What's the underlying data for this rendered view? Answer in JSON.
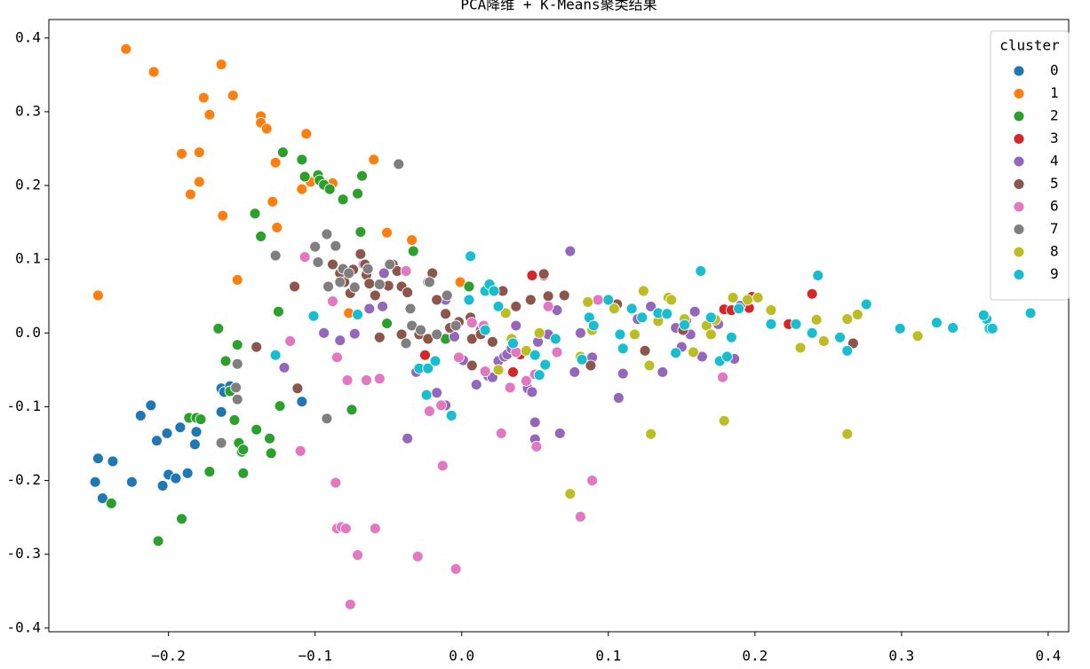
{
  "chart_data": {
    "type": "scatter",
    "title": "PCA降维 + K-Means聚类结果",
    "legend_title": "cluster",
    "legend": "upper right",
    "grid": false,
    "xlim": [
      -0.2816,
      0.414
    ],
    "ylim": [
      -0.405,
      0.425
    ],
    "xticks": [
      {
        "value": -0.2,
        "label": "−0.2"
      },
      {
        "value": -0.1,
        "label": "−0.1"
      },
      {
        "value": 0,
        "label": "0.0"
      },
      0.1,
      0.2,
      0.3,
      0.4
    ],
    "yticks": [
      -0.4,
      -0.3,
      -0.2,
      -0.1,
      {
        "value": 0,
        "label": "0.0"
      },
      0.1,
      0.2,
      0.3,
      0.4
    ],
    "series": [
      {
        "name": "0",
        "color": "#1f77b4",
        "x": [
          -0.25,
          -0.248,
          -0.245,
          -0.238,
          -0.225,
          -0.219,
          -0.212,
          -0.208,
          -0.204,
          -0.201,
          -0.2,
          -0.195,
          -0.192,
          -0.187,
          -0.182,
          -0.181,
          -0.164,
          -0.164,
          -0.162,
          -0.158,
          -0.109
        ],
        "y": [
          -0.202,
          -0.17,
          -0.224,
          -0.174,
          -0.202,
          -0.112,
          -0.098,
          -0.146,
          -0.207,
          -0.136,
          -0.192,
          -0.197,
          -0.128,
          -0.19,
          -0.151,
          -0.134,
          -0.107,
          -0.075,
          -0.08,
          -0.072,
          -0.093
        ]
      },
      {
        "name": "1",
        "color": "#ff7f0e",
        "x": [
          -0.248,
          -0.229,
          -0.21,
          -0.191,
          -0.185,
          -0.179,
          -0.179,
          -0.176,
          -0.172,
          -0.164,
          -0.163,
          -0.156,
          -0.153,
          -0.137,
          -0.137,
          -0.133,
          -0.129,
          -0.127,
          -0.126,
          -0.106,
          -0.109,
          -0.103,
          -0.088,
          -0.077,
          -0.06,
          -0.051,
          -0.034,
          -0.001
        ],
        "y": [
          0.051,
          0.385,
          0.354,
          0.243,
          0.188,
          0.245,
          0.205,
          0.319,
          0.296,
          0.364,
          0.159,
          0.322,
          0.072,
          0.294,
          0.285,
          0.277,
          0.178,
          0.231,
          0.143,
          0.27,
          0.195,
          0.205,
          0.203,
          0.027,
          0.235,
          0.136,
          0.126,
          0.069
        ]
      },
      {
        "name": "2",
        "color": "#2ca02c",
        "x": [
          -0.239,
          -0.207,
          -0.191,
          -0.186,
          -0.181,
          -0.178,
          -0.172,
          -0.166,
          -0.161,
          -0.158,
          -0.155,
          -0.153,
          -0.152,
          -0.15,
          -0.149,
          -0.149,
          -0.141,
          -0.14,
          -0.137,
          -0.131,
          -0.13,
          -0.125,
          -0.124,
          -0.122,
          -0.109,
          -0.107,
          -0.098,
          -0.097,
          -0.094,
          -0.09,
          -0.081,
          -0.075,
          -0.071,
          -0.069,
          -0.068,
          -0.051,
          -0.033,
          -0.011,
          0.005
        ],
        "y": [
          -0.231,
          -0.282,
          -0.252,
          -0.115,
          -0.115,
          -0.117,
          -0.188,
          0.006,
          -0.038,
          -0.079,
          -0.118,
          -0.016,
          -0.149,
          -0.161,
          -0.158,
          -0.19,
          0.162,
          -0.131,
          0.131,
          -0.143,
          -0.163,
          0.029,
          -0.099,
          0.245,
          0.235,
          0.212,
          0.214,
          0.207,
          0.201,
          0.195,
          0.181,
          -0.104,
          0.189,
          0.137,
          0.213,
          0.013,
          0.111,
          -0.008,
          0.063
        ]
      },
      {
        "name": "3",
        "color": "#d62728",
        "x": [
          -0.025,
          0.035,
          0.04,
          0.048,
          0.056,
          0.153,
          0.179,
          0.184,
          0.198,
          0.223,
          0.239,
          0.196
        ],
        "y": [
          -0.03,
          -0.053,
          -0.029,
          0.078,
          0.078,
          0.017,
          0.032,
          0.031,
          0.049,
          0.012,
          0.053,
          0.034
        ]
      },
      {
        "name": "4",
        "color": "#9467bd",
        "x": [
          -0.121,
          -0.094,
          -0.083,
          -0.073,
          -0.067,
          -0.063,
          -0.054,
          -0.037,
          -0.031,
          -0.017,
          -0.011,
          -0.005,
          0.001,
          0.01,
          0.018,
          0.021,
          0.025,
          0.029,
          0.031,
          0.034,
          0.037,
          0.045,
          0.048,
          0.05,
          0.05,
          0.052,
          0.059,
          0.065,
          0.067,
          0.074,
          0.077,
          0.081,
          0.089,
          0.107,
          0.11,
          0.12,
          0.129,
          0.137,
          0.146,
          0.15,
          0.156,
          0.159,
          0.164,
          0.175,
          0.186,
          0.19,
          -0.023,
          -0.011,
          -0.053,
          0.013
        ],
        "y": [
          -0.047,
          0.0,
          -0.01,
          -0.001,
          0.093,
          0.033,
          0.036,
          -0.143,
          -0.053,
          -0.081,
          -0.098,
          -0.005,
          -0.037,
          -0.07,
          -0.058,
          -0.06,
          -0.038,
          -0.032,
          -0.029,
          -0.021,
          0.01,
          -0.075,
          -0.08,
          -0.121,
          -0.144,
          -0.012,
          -0.002,
          0.031,
          -0.136,
          0.111,
          -0.053,
          0.0,
          -0.033,
          -0.088,
          -0.055,
          0.019,
          0.036,
          -0.053,
          0.007,
          -0.019,
          -0.002,
          0.029,
          -0.032,
          0.012,
          -0.035,
          0.037,
          0.069,
          0.045,
          0.081,
          0.004
        ]
      },
      {
        "name": "5",
        "color": "#8c564b",
        "x": [
          -0.14,
          -0.112,
          -0.114,
          -0.088,
          -0.083,
          -0.08,
          -0.076,
          -0.074,
          -0.069,
          -0.066,
          -0.065,
          -0.063,
          -0.059,
          -0.056,
          -0.05,
          -0.047,
          -0.044,
          -0.041,
          -0.037,
          -0.029,
          -0.02,
          -0.017,
          -0.011,
          -0.008,
          -0.002,
          0.006,
          0.007,
          0.013,
          0.021,
          0.028,
          0.037,
          0.047,
          0.056,
          0.059,
          0.07,
          0.088,
          0.106,
          0.125,
          0.151,
          0.267,
          -0.023,
          -0.041,
          0.007
        ],
        "y": [
          -0.019,
          -0.075,
          0.063,
          0.093,
          0.081,
          0.069,
          0.054,
          0.086,
          0.107,
          0.093,
          0.079,
          0.067,
          0.051,
          -0.006,
          0.064,
          0.093,
          0.084,
          0.063,
          0.055,
          -0.002,
          0.081,
          0.045,
          0.026,
          0.007,
          0.015,
          0.021,
          -0.008,
          -0.002,
          -0.012,
          0.057,
          0.036,
          0.045,
          0.08,
          0.05,
          0.051,
          -0.044,
          0.039,
          -0.024,
          0.004,
          -0.014,
          -0.008,
          -0.002,
          -0.044
        ]
      },
      {
        "name": "6",
        "color": "#e377c2",
        "x": [
          -0.117,
          -0.11,
          -0.107,
          -0.088,
          -0.086,
          -0.085,
          -0.085,
          -0.082,
          -0.079,
          -0.078,
          -0.071,
          -0.065,
          -0.059,
          -0.056,
          -0.076,
          -0.03,
          -0.022,
          -0.013,
          -0.004,
          -0.002,
          0.007,
          0.015,
          0.016,
          0.027,
          0.033,
          0.044,
          0.05,
          0.051,
          0.059,
          0.065,
          0.081,
          0.089,
          0.093,
          0.104,
          0.178,
          -0.038,
          -0.014,
          0.037
        ],
        "y": [
          -0.011,
          -0.16,
          0.103,
          0.043,
          -0.203,
          -0.265,
          -0.033,
          -0.263,
          -0.265,
          -0.064,
          -0.301,
          -0.064,
          -0.265,
          -0.062,
          -0.368,
          -0.303,
          -0.106,
          -0.18,
          -0.32,
          -0.033,
          0.014,
          0.01,
          -0.052,
          -0.136,
          -0.074,
          -0.065,
          -0.056,
          -0.154,
          0.036,
          -0.026,
          -0.249,
          -0.2,
          0.045,
          0.033,
          -0.06,
          0.084,
          -0.098,
          -0.026
        ]
      },
      {
        "name": "7",
        "color": "#7f7f7f",
        "x": [
          -0.164,
          -0.153,
          -0.153,
          -0.154,
          -0.127,
          -0.1,
          -0.098,
          -0.092,
          -0.092,
          -0.091,
          -0.086,
          -0.083,
          -0.081,
          -0.077,
          -0.073,
          -0.064,
          -0.056,
          -0.049,
          -0.043,
          -0.038,
          -0.034,
          -0.028,
          -0.022,
          -0.017,
          -0.01,
          -0.004,
          -0.035
        ],
        "y": [
          -0.149,
          -0.09,
          -0.042,
          -0.074,
          0.105,
          0.117,
          0.096,
          -0.116,
          0.134,
          0.063,
          0.118,
          0.069,
          0.087,
          0.081,
          0.062,
          0.087,
          0.066,
          0.093,
          0.229,
          -0.014,
          0.01,
          0.004,
          0.069,
          -0.002,
          0.051,
          0.01,
          0.033
        ]
      },
      {
        "name": "8",
        "color": "#bcbd22",
        "x": [
          0.025,
          0.03,
          0.034,
          0.044,
          0.053,
          0.074,
          0.081,
          0.086,
          0.089,
          0.104,
          0.118,
          0.124,
          0.128,
          0.129,
          0.134,
          0.141,
          0.152,
          0.158,
          0.167,
          0.17,
          0.173,
          0.179,
          0.185,
          0.195,
          0.202,
          0.211,
          0.231,
          0.242,
          0.247,
          0.263,
          0.263,
          0.27,
          0.311,
          0.143
        ],
        "y": [
          -0.05,
          0.027,
          -0.008,
          -0.024,
          0.0,
          -0.218,
          -0.032,
          0.042,
          0.004,
          0.033,
          -0.002,
          0.057,
          -0.044,
          -0.137,
          0.016,
          0.048,
          0.019,
          -0.026,
          0.01,
          -0.002,
          0.018,
          -0.119,
          0.048,
          0.045,
          0.048,
          0.031,
          -0.02,
          0.018,
          -0.011,
          -0.137,
          0.019,
          0.025,
          -0.004,
          0.045
        ]
      },
      {
        "name": "9",
        "color": "#17becf",
        "x": [
          -0.127,
          -0.101,
          -0.071,
          -0.029,
          -0.024,
          -0.023,
          -0.018,
          -0.007,
          0.006,
          0.016,
          0.019,
          0.022,
          0.025,
          0.035,
          0.05,
          0.053,
          0.057,
          0.064,
          0.082,
          0.087,
          0.09,
          0.1,
          0.108,
          0.11,
          0.116,
          0.123,
          0.134,
          0.14,
          0.146,
          0.152,
          0.163,
          0.17,
          0.176,
          0.184,
          0.189,
          0.211,
          0.228,
          0.239,
          0.243,
          0.258,
          0.263,
          0.276,
          0.299,
          0.324,
          0.335,
          0.358,
          0.356,
          0.36,
          0.362,
          0.388,
          0.016,
          0.005,
          0.181
        ],
        "y": [
          -0.03,
          0.023,
          0.025,
          -0.048,
          -0.084,
          -0.048,
          -0.038,
          -0.112,
          0.104,
          0.057,
          0.066,
          0.057,
          0.036,
          -0.014,
          -0.03,
          -0.057,
          -0.043,
          -0.008,
          -0.036,
          0.021,
          0.01,
          0.045,
          -0.002,
          -0.021,
          0.033,
          0.021,
          0.027,
          0.026,
          -0.027,
          0.011,
          0.084,
          0.021,
          -0.038,
          -0.006,
          0.033,
          0.012,
          0.012,
          0.0,
          0.078,
          -0.006,
          -0.024,
          0.039,
          0.006,
          0.014,
          0.007,
          0.019,
          0.024,
          0.006,
          0.006,
          0.027,
          0.004,
          0.045,
          -0.032
        ]
      }
    ]
  }
}
